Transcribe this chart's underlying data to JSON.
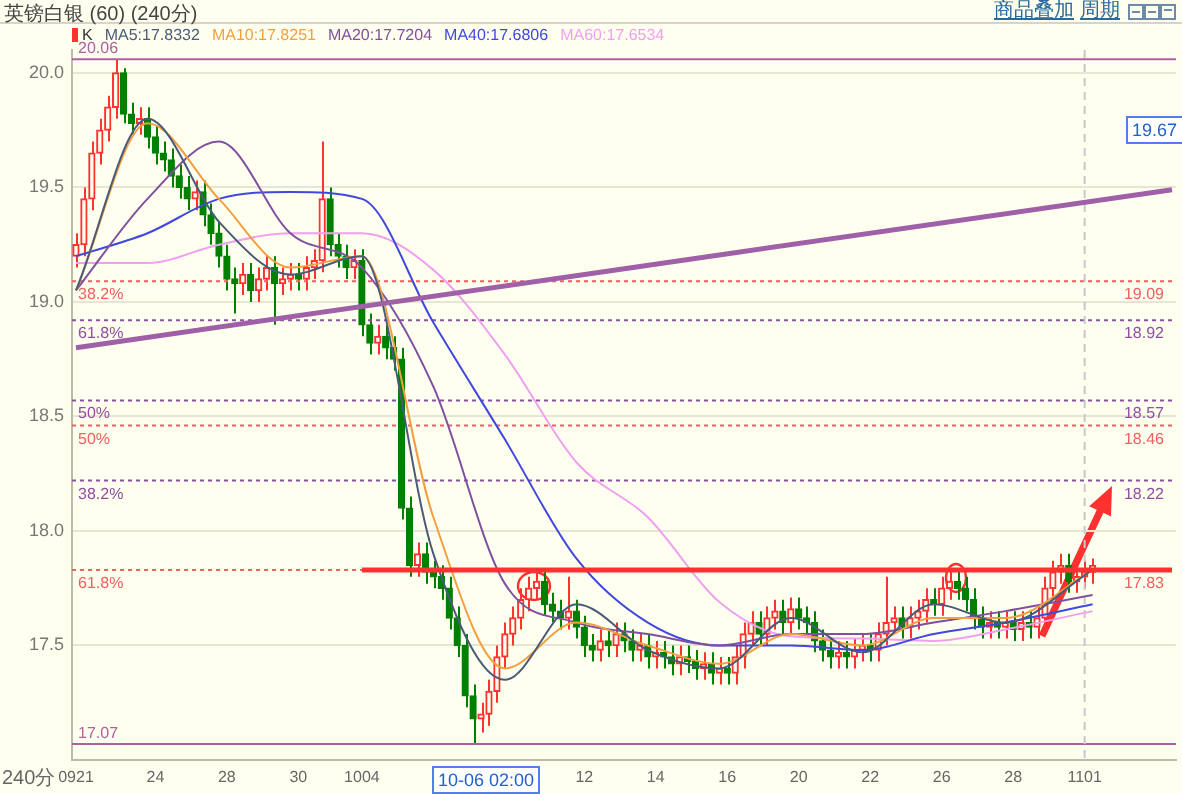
{
  "chart_data": {
    "type": "candlestick",
    "title": "英镑白银 (60) (240分)",
    "legend": "top left",
    "grid": "y",
    "marker": "none",
    "line_style": "solid",
    "categories": [
      "0921",
      null,
      null,
      null,
      null,
      null,
      null,
      null,
      null,
      null,
      "24",
      null,
      null,
      null,
      null,
      null,
      null,
      null,
      null,
      "28",
      null,
      null,
      null,
      null,
      null,
      null,
      null,
      null,
      "30",
      null,
      null,
      null,
      null,
      null,
      null,
      null,
      "1004",
      null,
      null,
      null,
      null,
      null,
      null,
      null,
      null,
      null,
      null,
      null,
      null,
      null,
      null,
      null,
      null,
      null,
      null,
      null,
      null,
      null,
      null,
      null,
      null,
      null,
      null,
      null,
      "12",
      null,
      null,
      null,
      null,
      null,
      null,
      null,
      null,
      "14",
      null,
      null,
      null,
      null,
      null,
      null,
      null,
      null,
      "16",
      null,
      null,
      null,
      null,
      null,
      null,
      null,
      null,
      "20",
      null,
      null,
      null,
      null,
      null,
      null,
      null,
      null,
      "22",
      null,
      null,
      null,
      null,
      null,
      null,
      null,
      null,
      "26",
      null,
      null,
      null,
      null,
      null,
      null,
      null,
      null,
      "28",
      null,
      null,
      null,
      null,
      null,
      null,
      null,
      null,
      "1101",
      null,
      null,
      null,
      null,
      null,
      null,
      null,
      null,
      null,
      null,
      null
    ],
    "ylim": [
      17.0,
      20.1
    ],
    "yticks": [
      {
        "value": 17.5,
        "label": "17.5"
      },
      {
        "value": 18,
        "label": "18.0"
      },
      {
        "value": 18.5,
        "label": "18.5"
      },
      {
        "value": 19,
        "label": "19.0"
      },
      {
        "value": 19.5,
        "label": "19.5"
      },
      {
        "value": 20,
        "label": "20.0"
      }
    ],
    "series": [
      {
        "type": "candlestick",
        "name": "K",
        "colors": [
          "#ff3232",
          "#ff3232",
          "#ff3232",
          "#ff3232",
          "#ff3232",
          "#ff3232",
          "#008000",
          "#008000",
          "#ff3232",
          "#008000",
          "#008000",
          "#008000",
          "#008000",
          "#008000",
          "#008000",
          "#ff3232",
          "#008000",
          "#008000",
          "#008000",
          "#008000",
          "#008000",
          "#ff3232",
          "#008000",
          "#ff3232",
          "#ff3232",
          "#008000",
          "#ff3232",
          "#ff3232",
          "#008000",
          "#ff3232",
          "#ff3232",
          "#ff3232",
          "#008000",
          "#008000",
          "#008000",
          "#ff3232",
          "#008000",
          "#008000",
          "#ff3232",
          "#008000",
          "#008000",
          "#008000",
          "#008000",
          "#ff3232",
          "#008000",
          "#008000",
          "#008000",
          "#008000",
          "#008000",
          "#008000",
          "#008000",
          "#ff3232",
          "#ff3232",
          "#ff3232",
          "#ff3232",
          "#ff3232",
          "#ff3232",
          "#ff3232",
          "#ff3232",
          "#008000",
          "#008000",
          "#008000",
          "#ff3232",
          "#008000",
          "#008000",
          "#008000",
          "#ff3232",
          "#008000",
          "#ff3232",
          "#008000",
          "#008000",
          "#ff3232",
          "#008000",
          "#ff3232",
          "#008000",
          "#008000",
          "#ff3232",
          "#008000",
          "#008000",
          "#ff3232",
          "#008000",
          "#ff3232",
          "#008000",
          "#ff3232",
          "#ff3232",
          "#ff3232",
          "#008000",
          "#ff3232",
          "#ff3232",
          "#008000",
          "#ff3232",
          "#008000",
          "#008000",
          "#008000",
          "#008000",
          "#008000",
          "#ff3232",
          "#008000",
          "#ff3232",
          "#ff3232",
          "#008000",
          "#ff3232",
          "#ff3232",
          "#ff3232",
          "#008000",
          "#ff3232",
          "#ff3232",
          "#ff3232",
          "#008000",
          "#ff3232",
          "#ff3232",
          "#008000",
          "#008000",
          "#008000",
          "#008000",
          "#ff3232",
          "#008000",
          "#ff3232",
          "#008000",
          "#ff3232",
          "#008000",
          "#ff3232",
          "#ff3232",
          "#ff3232",
          "#ff3232",
          "#008000",
          "#ff3232",
          "#ff3232",
          "#ff3232",
          null,
          null,
          null,
          null,
          null,
          null,
          null,
          null,
          null,
          null
        ],
        "ohlc": [
          [
            19.2,
            19.3,
            19.15,
            19.25
          ],
          [
            19.25,
            19.5,
            19.2,
            19.45
          ],
          [
            19.45,
            19.7,
            19.4,
            19.65
          ],
          [
            19.65,
            19.8,
            19.6,
            19.75
          ],
          [
            19.75,
            19.9,
            19.7,
            19.85
          ],
          [
            19.85,
            20.06,
            19.8,
            20.0
          ],
          [
            20.0,
            20.02,
            19.78,
            19.82
          ],
          [
            19.82,
            19.87,
            19.73,
            19.78
          ],
          [
            19.78,
            19.85,
            19.73,
            19.8
          ],
          [
            19.8,
            19.85,
            19.67,
            19.72
          ],
          [
            19.72,
            19.77,
            19.6,
            19.65
          ],
          [
            19.65,
            19.7,
            19.57,
            19.62
          ],
          [
            19.62,
            19.67,
            19.5,
            19.55
          ],
          [
            19.55,
            19.6,
            19.45,
            19.5
          ],
          [
            19.5,
            19.55,
            19.4,
            19.45
          ],
          [
            19.45,
            19.53,
            19.4,
            19.48
          ],
          [
            19.48,
            19.53,
            19.33,
            19.38
          ],
          [
            19.38,
            19.43,
            19.25,
            19.3
          ],
          [
            19.3,
            19.35,
            19.15,
            19.2
          ],
          [
            19.2,
            19.25,
            19.05,
            19.1
          ],
          [
            19.1,
            19.15,
            18.95,
            19.08
          ],
          [
            19.08,
            19.17,
            19.03,
            19.12
          ],
          [
            19.12,
            19.17,
            19.0,
            19.05
          ],
          [
            19.05,
            19.15,
            19.0,
            19.1
          ],
          [
            19.1,
            19.2,
            19.05,
            19.15
          ],
          [
            19.15,
            19.2,
            18.9,
            19.08
          ],
          [
            19.08,
            19.15,
            19.03,
            19.1
          ],
          [
            19.1,
            19.17,
            19.05,
            19.12
          ],
          [
            19.12,
            19.17,
            19.05,
            19.1
          ],
          [
            19.1,
            19.2,
            19.05,
            19.15
          ],
          [
            19.15,
            19.23,
            19.1,
            19.18
          ],
          [
            19.18,
            19.7,
            19.13,
            19.45
          ],
          [
            19.45,
            19.5,
            19.2,
            19.25
          ],
          [
            19.25,
            19.3,
            19.15,
            19.2
          ],
          [
            19.2,
            19.25,
            19.1,
            19.15
          ],
          [
            19.15,
            19.23,
            19.1,
            19.18
          ],
          [
            19.18,
            19.23,
            18.85,
            18.9
          ],
          [
            18.9,
            18.95,
            18.77,
            18.82
          ],
          [
            18.82,
            18.9,
            18.77,
            18.85
          ],
          [
            18.85,
            18.9,
            18.75,
            18.8
          ],
          [
            18.8,
            18.85,
            18.7,
            18.75
          ],
          [
            18.75,
            18.8,
            18.05,
            18.1
          ],
          [
            18.1,
            18.15,
            17.8,
            17.85
          ],
          [
            17.85,
            17.95,
            17.8,
            17.9
          ],
          [
            17.9,
            17.95,
            17.77,
            17.82
          ],
          [
            17.82,
            17.87,
            17.75,
            17.8
          ],
          [
            17.8,
            17.85,
            17.7,
            17.75
          ],
          [
            17.75,
            17.8,
            17.57,
            17.62
          ],
          [
            17.62,
            17.67,
            17.45,
            17.5
          ],
          [
            17.5,
            17.55,
            17.23,
            17.28
          ],
          [
            17.28,
            17.33,
            17.07,
            17.18
          ],
          [
            17.18,
            17.25,
            17.12,
            17.2
          ],
          [
            17.2,
            17.35,
            17.15,
            17.3
          ],
          [
            17.3,
            17.5,
            17.25,
            17.45
          ],
          [
            17.45,
            17.6,
            17.4,
            17.55
          ],
          [
            17.55,
            17.67,
            17.5,
            17.62
          ],
          [
            17.62,
            17.75,
            17.57,
            17.7
          ],
          [
            17.7,
            17.8,
            17.65,
            17.75
          ],
          [
            17.75,
            17.83,
            17.7,
            17.78
          ],
          [
            17.78,
            17.83,
            17.63,
            17.68
          ],
          [
            17.68,
            17.73,
            17.6,
            17.65
          ],
          [
            17.65,
            17.7,
            17.57,
            17.62
          ],
          [
            17.62,
            17.8,
            17.57,
            17.65
          ],
          [
            17.65,
            17.7,
            17.53,
            17.58
          ],
          [
            17.58,
            17.63,
            17.45,
            17.5
          ],
          [
            17.5,
            17.55,
            17.43,
            17.48
          ],
          [
            17.48,
            17.57,
            17.43,
            17.52
          ],
          [
            17.52,
            17.57,
            17.45,
            17.5
          ],
          [
            17.5,
            17.6,
            17.45,
            17.55
          ],
          [
            17.55,
            17.6,
            17.47,
            17.52
          ],
          [
            17.52,
            17.57,
            17.43,
            17.48
          ],
          [
            17.48,
            17.55,
            17.43,
            17.5
          ],
          [
            17.5,
            17.55,
            17.4,
            17.45
          ],
          [
            17.45,
            17.52,
            17.4,
            17.47
          ],
          [
            17.47,
            17.52,
            17.4,
            17.45
          ],
          [
            17.45,
            17.5,
            17.37,
            17.42
          ],
          [
            17.42,
            17.5,
            17.37,
            17.45
          ],
          [
            17.45,
            17.5,
            17.38,
            17.43
          ],
          [
            17.43,
            17.48,
            17.35,
            17.4
          ],
          [
            17.4,
            17.47,
            17.35,
            17.42
          ],
          [
            17.42,
            17.47,
            17.33,
            17.38
          ],
          [
            17.38,
            17.45,
            17.33,
            17.4
          ],
          [
            17.4,
            17.45,
            17.33,
            17.38
          ],
          [
            17.38,
            17.5,
            17.33,
            17.45
          ],
          [
            17.45,
            17.6,
            17.4,
            17.55
          ],
          [
            17.55,
            17.65,
            17.5,
            17.6
          ],
          [
            17.6,
            17.65,
            17.5,
            17.55
          ],
          [
            17.55,
            17.67,
            17.5,
            17.62
          ],
          [
            17.62,
            17.7,
            17.57,
            17.65
          ],
          [
            17.65,
            17.7,
            17.55,
            17.6
          ],
          [
            17.6,
            17.71,
            17.55,
            17.66
          ],
          [
            17.66,
            17.71,
            17.57,
            17.62
          ],
          [
            17.62,
            17.67,
            17.55,
            17.6
          ],
          [
            17.6,
            17.65,
            17.47,
            17.52
          ],
          [
            17.52,
            17.57,
            17.43,
            17.48
          ],
          [
            17.48,
            17.53,
            17.4,
            17.45
          ],
          [
            17.45,
            17.52,
            17.4,
            17.47
          ],
          [
            17.47,
            17.52,
            17.4,
            17.45
          ],
          [
            17.45,
            17.53,
            17.4,
            17.48
          ],
          [
            17.48,
            17.55,
            17.43,
            17.5
          ],
          [
            17.5,
            17.55,
            17.43,
            17.48
          ],
          [
            17.48,
            17.6,
            17.43,
            17.55
          ],
          [
            17.55,
            17.8,
            17.5,
            17.6
          ],
          [
            17.6,
            17.67,
            17.55,
            17.62
          ],
          [
            17.62,
            17.67,
            17.53,
            17.58
          ],
          [
            17.58,
            17.67,
            17.53,
            17.62
          ],
          [
            17.62,
            17.7,
            17.57,
            17.65
          ],
          [
            17.65,
            17.75,
            17.6,
            17.7
          ],
          [
            17.7,
            17.75,
            17.63,
            17.68
          ],
          [
            17.68,
            17.8,
            17.63,
            17.75
          ],
          [
            17.75,
            17.83,
            17.7,
            17.78
          ],
          [
            17.78,
            17.83,
            17.7,
            17.75
          ],
          [
            17.75,
            17.8,
            17.65,
            17.7
          ],
          [
            17.7,
            17.75,
            17.57,
            17.62
          ],
          [
            17.62,
            17.67,
            17.53,
            17.58
          ],
          [
            17.58,
            17.65,
            17.53,
            17.6
          ],
          [
            17.6,
            17.65,
            17.53,
            17.58
          ],
          [
            17.58,
            17.65,
            17.53,
            17.6
          ],
          [
            17.6,
            17.65,
            17.52,
            17.57
          ],
          [
            17.57,
            17.65,
            17.52,
            17.6
          ],
          [
            17.6,
            17.65,
            17.53,
            17.58
          ],
          [
            17.58,
            17.67,
            17.53,
            17.62
          ],
          [
            17.62,
            17.8,
            17.57,
            17.75
          ],
          [
            17.75,
            17.87,
            17.7,
            17.82
          ],
          [
            17.82,
            17.9,
            17.77,
            17.85
          ],
          [
            17.85,
            17.9,
            17.73,
            17.78
          ],
          [
            17.78,
            17.85,
            17.73,
            17.8
          ],
          [
            17.8,
            17.87,
            17.75,
            17.82
          ],
          [
            17.82,
            17.88,
            17.77,
            17.85
          ],
          null,
          null,
          null,
          null,
          null,
          null,
          null,
          null,
          null,
          null
        ]
      },
      {
        "type": "line",
        "name": "MA5:17.8332",
        "color": "#4a5a78",
        "values": [
          19.05,
          null,
          null,
          null,
          null,
          null,
          null,
          null,
          null,
          19.8,
          null,
          null,
          null,
          null,
          null,
          null,
          null,
          null,
          19.35,
          null,
          null,
          null,
          null,
          null,
          null,
          null,
          null,
          19.12,
          null,
          null,
          null,
          null,
          null,
          null,
          null,
          null,
          19.2,
          null,
          null,
          null,
          null,
          null,
          null,
          null,
          null,
          17.9,
          null,
          null,
          null,
          null,
          null,
          null,
          null,
          null,
          17.35,
          null,
          null,
          null,
          null,
          null,
          null,
          null,
          null,
          17.68,
          null,
          null,
          null,
          null,
          null,
          null,
          null,
          null,
          17.48,
          null,
          null,
          null,
          null,
          null,
          null,
          null,
          null,
          17.4,
          null,
          null,
          null,
          null,
          null,
          null,
          null,
          null,
          17.62,
          null,
          null,
          null,
          null,
          null,
          null,
          null,
          null,
          17.47,
          null,
          null,
          null,
          null,
          null,
          null,
          null,
          null,
          17.68,
          null,
          null,
          null,
          null,
          null,
          null,
          null,
          null,
          17.6,
          null,
          null,
          null,
          null,
          null,
          null,
          null,
          null,
          null,
          null,
          17.83,
          null,
          null,
          null,
          null,
          null,
          null,
          null,
          null,
          null,
          null
        ]
      },
      {
        "type": "line",
        "name": "MA10:17.8251",
        "color": "#f0a040",
        "values": [
          19.05,
          null,
          null,
          null,
          null,
          null,
          null,
          null,
          null,
          19.78,
          null,
          null,
          null,
          null,
          null,
          null,
          null,
          null,
          19.45,
          null,
          null,
          null,
          null,
          null,
          null,
          null,
          null,
          19.15,
          null,
          null,
          null,
          null,
          null,
          null,
          null,
          null,
          19.2,
          null,
          null,
          null,
          null,
          null,
          null,
          null,
          null,
          18.06,
          null,
          null,
          null,
          null,
          null,
          null,
          null,
          null,
          17.4,
          null,
          null,
          null,
          null,
          null,
          null,
          null,
          null,
          17.6,
          null,
          null,
          null,
          null,
          null,
          null,
          null,
          null,
          17.5,
          null,
          null,
          null,
          null,
          null,
          null,
          null,
          null,
          17.42,
          null,
          null,
          null,
          null,
          null,
          null,
          null,
          null,
          17.55,
          null,
          null,
          null,
          null,
          null,
          null,
          null,
          null,
          17.5,
          null,
          null,
          null,
          null,
          null,
          null,
          null,
          null,
          17.62,
          null,
          null,
          null,
          null,
          null,
          null,
          null,
          null,
          17.62,
          null,
          null,
          null,
          null,
          null,
          null,
          null,
          null,
          null,
          null,
          17.83,
          null,
          null,
          null,
          null,
          null,
          null,
          null,
          null,
          null,
          null
        ]
      },
      {
        "type": "line",
        "name": "MA20:17.7204",
        "color": "#8050a0",
        "values": [
          19.05,
          null,
          null,
          null,
          null,
          null,
          null,
          null,
          null,
          19.45,
          null,
          null,
          null,
          null,
          null,
          null,
          null,
          null,
          19.7,
          null,
          null,
          null,
          null,
          null,
          null,
          null,
          null,
          19.3,
          null,
          null,
          null,
          null,
          null,
          null,
          null,
          null,
          19.15,
          null,
          null,
          null,
          null,
          null,
          null,
          null,
          null,
          18.63,
          null,
          null,
          null,
          null,
          null,
          null,
          null,
          null,
          17.77,
          null,
          null,
          null,
          null,
          null,
          null,
          null,
          null,
          17.6,
          null,
          null,
          null,
          null,
          null,
          null,
          null,
          null,
          17.55,
          null,
          null,
          null,
          null,
          null,
          null,
          null,
          null,
          17.5,
          null,
          null,
          null,
          null,
          null,
          null,
          null,
          null,
          17.55,
          null,
          null,
          null,
          null,
          null,
          null,
          null,
          null,
          17.55,
          null,
          null,
          null,
          null,
          null,
          null,
          null,
          null,
          17.6,
          null,
          null,
          null,
          null,
          null,
          null,
          null,
          null,
          17.65,
          null,
          null,
          null,
          null,
          null,
          null,
          null,
          null,
          null,
          null,
          17.72,
          null,
          null,
          null,
          null,
          null,
          null,
          null,
          null,
          null,
          null
        ]
      },
      {
        "type": "line",
        "name": "MA40:17.6806",
        "color": "#4048e0",
        "values": [
          19.2,
          null,
          null,
          null,
          null,
          null,
          null,
          null,
          null,
          19.3,
          null,
          null,
          null,
          null,
          null,
          null,
          null,
          null,
          19.45,
          null,
          null,
          null,
          null,
          null,
          null,
          null,
          null,
          19.48,
          null,
          null,
          null,
          null,
          null,
          null,
          null,
          null,
          19.45,
          null,
          null,
          null,
          null,
          null,
          null,
          null,
          null,
          18.91,
          null,
          null,
          null,
          null,
          null,
          null,
          null,
          null,
          18.4,
          null,
          null,
          null,
          null,
          null,
          null,
          null,
          null,
          17.88,
          null,
          null,
          null,
          null,
          null,
          null,
          null,
          null,
          17.6,
          null,
          null,
          null,
          null,
          null,
          null,
          null,
          null,
          17.5,
          null,
          null,
          null,
          null,
          null,
          null,
          null,
          null,
          17.5,
          null,
          null,
          null,
          null,
          null,
          null,
          null,
          null,
          17.48,
          null,
          null,
          null,
          null,
          null,
          null,
          null,
          null,
          17.55,
          null,
          null,
          null,
          null,
          null,
          null,
          null,
          null,
          17.6,
          null,
          null,
          null,
          null,
          null,
          null,
          null,
          null,
          null,
          null,
          17.68,
          null,
          null,
          null,
          null,
          null,
          null,
          null,
          null,
          null,
          null
        ]
      },
      {
        "type": "line",
        "name": "MA60:17.6534",
        "color": "#f0a0f0",
        "values": [
          19.17,
          null,
          null,
          null,
          null,
          null,
          null,
          null,
          null,
          19.17,
          null,
          null,
          null,
          null,
          null,
          null,
          null,
          null,
          19.25,
          null,
          null,
          null,
          null,
          null,
          null,
          null,
          null,
          19.3,
          null,
          null,
          null,
          null,
          null,
          null,
          null,
          null,
          19.3,
          null,
          null,
          null,
          null,
          null,
          null,
          null,
          null,
          19.14,
          null,
          null,
          null,
          null,
          null,
          null,
          null,
          null,
          18.77,
          null,
          null,
          null,
          null,
          null,
          null,
          null,
          null,
          18.3,
          null,
          null,
          null,
          null,
          null,
          null,
          null,
          null,
          18.06,
          null,
          null,
          null,
          null,
          null,
          null,
          null,
          null,
          17.69,
          null,
          null,
          null,
          null,
          null,
          null,
          null,
          null,
          17.54,
          null,
          null,
          null,
          null,
          null,
          null,
          null,
          null,
          17.53,
          null,
          null,
          null,
          null,
          null,
          null,
          null,
          null,
          17.52,
          null,
          null,
          null,
          null,
          null,
          null,
          null,
          null,
          17.57,
          null,
          null,
          null,
          null,
          null,
          null,
          null,
          null,
          null,
          null,
          17.65,
          null,
          null,
          null,
          null,
          null,
          null,
          null,
          null,
          null,
          null
        ]
      },
      {
        "type": "line",
        "color": "#a060a8",
        "values": [
          18.8,
          null,
          null,
          null,
          null,
          null,
          null,
          null,
          null,
          null,
          null,
          null,
          null,
          null,
          null,
          null,
          null,
          null,
          null,
          null,
          null,
          null,
          null,
          null,
          null,
          null,
          null,
          null,
          null,
          null,
          null,
          null,
          null,
          null,
          null,
          null,
          null,
          null,
          null,
          null,
          null,
          null,
          null,
          null,
          null,
          null,
          null,
          null,
          null,
          null,
          null,
          null,
          null,
          null,
          null,
          null,
          null,
          null,
          null,
          null,
          null,
          null,
          null,
          null,
          null,
          null,
          null,
          null,
          null,
          null,
          null,
          null,
          null,
          null,
          null,
          null,
          null,
          null,
          null,
          null,
          null,
          null,
          null,
          null,
          null,
          null,
          null,
          null,
          null,
          null,
          null,
          null,
          null,
          null,
          null,
          null,
          null,
          null,
          null,
          null,
          null,
          null,
          null,
          null,
          null,
          null,
          null,
          null,
          null,
          null,
          null,
          null,
          null,
          null,
          null,
          null,
          null,
          null,
          null,
          null,
          null,
          null,
          null,
          null,
          null,
          null,
          null,
          null,
          null,
          null,
          null,
          null,
          null,
          null,
          null,
          null,
          null,
          null,
          19.49
        ]
      },
      {
        "type": "line",
        "color": "#ff3030",
        "values": [
          null,
          null,
          null,
          null,
          null,
          null,
          null,
          null,
          null,
          null,
          null,
          null,
          null,
          null,
          null,
          null,
          null,
          null,
          null,
          null,
          null,
          null,
          null,
          null,
          null,
          null,
          null,
          null,
          null,
          null,
          null,
          null,
          null,
          null,
          null,
          null,
          17.83,
          null,
          null,
          null,
          null,
          null,
          null,
          null,
          null,
          null,
          null,
          null,
          null,
          null,
          null,
          null,
          null,
          null,
          null,
          null,
          null,
          null,
          null,
          null,
          null,
          null,
          null,
          null,
          null,
          null,
          null,
          null,
          null,
          null,
          null,
          null,
          null,
          null,
          null,
          null,
          null,
          null,
          null,
          null,
          null,
          null,
          null,
          null,
          null,
          null,
          null,
          null,
          null,
          null,
          null,
          null,
          null,
          null,
          null,
          null,
          null,
          null,
          null,
          null,
          null,
          null,
          null,
          null,
          null,
          null,
          null,
          null,
          null,
          null,
          null,
          null,
          null,
          null,
          null,
          null,
          null,
          null,
          null,
          null,
          null,
          null,
          null,
          null,
          null,
          null,
          null,
          null,
          null,
          null,
          null,
          null,
          null,
          null,
          null,
          null,
          null,
          null,
          17.83
        ]
      }
    ],
    "ref_lines": [
      {
        "axis": "y",
        "value": 20.06,
        "label": "20.06",
        "color": "#b060a0",
        "line_style": "solid"
      },
      {
        "axis": "y",
        "value": 17.07,
        "label": "17.07",
        "color": "#b060a0",
        "line_style": "solid"
      },
      {
        "axis": "y",
        "value": 19.09,
        "label": "19.09",
        "color": "#f06060",
        "line_style": "dotted"
      },
      {
        "axis": "y",
        "value": 18.92,
        "label": "18.92",
        "color": "#9050a0",
        "line_style": "dotted"
      },
      {
        "axis": "y",
        "value": 18.57,
        "label": "18.57",
        "color": "#9050a0",
        "line_style": "dotted"
      },
      {
        "axis": "y",
        "value": 18.46,
        "label": "18.46",
        "color": "#f06060",
        "line_style": "dotted"
      },
      {
        "axis": "y",
        "value": 18.22,
        "label": "18.22",
        "color": "#9050a0",
        "line_style": "dotted"
      },
      {
        "axis": "y",
        "value": 17.83,
        "label": "17.83",
        "color": "#f06060",
        "line_style": "dotted"
      },
      {
        "axis": "x",
        "value": "1101",
        "color": "#c8c8c8",
        "line_style": "dashed"
      }
    ],
    "annotations": [
      {
        "text": "38.2%",
        "y": 19.09
      },
      {
        "text": "61.8%",
        "y": 18.92
      },
      {
        "text": "50%",
        "y": 18.57
      },
      {
        "text": "50%",
        "y": 18.46
      },
      {
        "text": "38.2%",
        "y": 18.22
      },
      {
        "text": "61.8%",
        "y": 17.83
      },
      "商品叠加",
      "周期",
      "240分",
      "10-06 02:00",
      "19.67"
    ]
  }
}
